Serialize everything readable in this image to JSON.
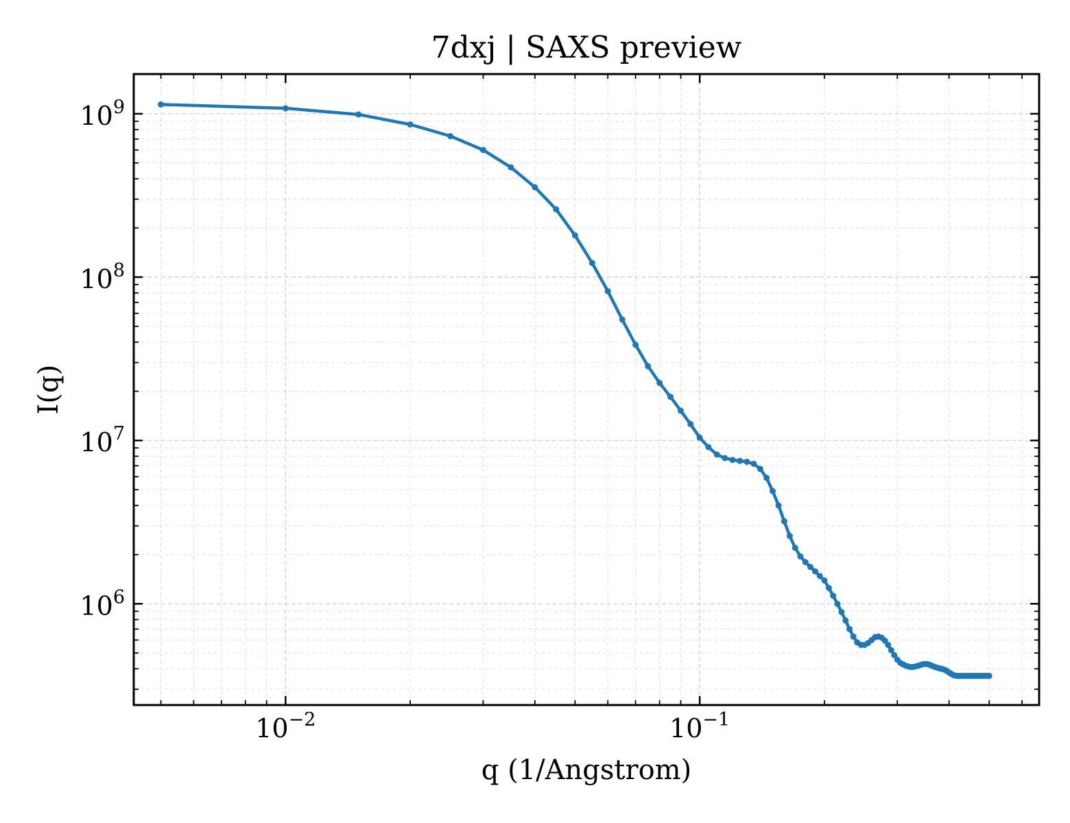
{
  "chart_data": {
    "type": "line",
    "title": "7dxj | SAXS preview",
    "xlabel": "q (1/Angstrom)",
    "ylabel": "I(q)",
    "xscale": "log",
    "yscale": "log",
    "xlim": [
      0.0043,
      0.66
    ],
    "ylim": [
      240000,
      1750000000
    ],
    "grid": "on (major and minor, dashed)",
    "line_color": "#1f77b4",
    "x_ticks": [
      {
        "value": 0.01,
        "base": "10",
        "exp": "−2"
      },
      {
        "value": 0.1,
        "base": "10",
        "exp": "−1"
      }
    ],
    "y_ticks": [
      {
        "value": 1000000,
        "base": "10",
        "exp": "6"
      },
      {
        "value": 10000000,
        "base": "10",
        "exp": "7"
      },
      {
        "value": 100000000,
        "base": "10",
        "exp": "8"
      },
      {
        "value": 1000000000,
        "base": "10",
        "exp": "9"
      }
    ],
    "series": [
      {
        "x": [
          0.005,
          0.01,
          0.015,
          0.02,
          0.025,
          0.03,
          0.035,
          0.04,
          0.045,
          0.05,
          0.055,
          0.06,
          0.065,
          0.07,
          0.075,
          0.08,
          0.085,
          0.09,
          0.095,
          0.1,
          0.105,
          0.11,
          0.115,
          0.12,
          0.125,
          0.13,
          0.135,
          0.14,
          0.145,
          0.15,
          0.155,
          0.16,
          0.165,
          0.17,
          0.175,
          0.18,
          0.185,
          0.19,
          0.195,
          0.2,
          0.205,
          0.21,
          0.215,
          0.22,
          0.225,
          0.23,
          0.235,
          0.24,
          0.245,
          0.25,
          0.255,
          0.26,
          0.265,
          0.27,
          0.275,
          0.28,
          0.285,
          0.29,
          0.295,
          0.3,
          0.305,
          0.31,
          0.315,
          0.32,
          0.325,
          0.33,
          0.335,
          0.34,
          0.345,
          0.35,
          0.355,
          0.36,
          0.365,
          0.37,
          0.375,
          0.38,
          0.385,
          0.39,
          0.395,
          0.4,
          0.405,
          0.41,
          0.415,
          0.42,
          0.425,
          0.43,
          0.435,
          0.44,
          0.445,
          0.45,
          0.455,
          0.46,
          0.465,
          0.47,
          0.475,
          0.48,
          0.485,
          0.49,
          0.495,
          0.5
        ],
        "y": [
          1140000000,
          1080000000,
          990000000,
          860000000,
          730000000,
          600000000,
          470000000,
          355000000,
          260000000,
          180000000,
          122000000,
          82000000,
          55000000,
          38500000,
          28500000,
          22500000,
          18500000,
          15200000,
          12600000,
          10400000,
          9100000,
          8200000,
          7800000,
          7600000,
          7500000,
          7400000,
          7200000,
          6700000,
          5900000,
          4900000,
          4000000,
          3200000,
          2600000,
          2200000,
          1950000,
          1800000,
          1680000,
          1580000,
          1480000,
          1390000,
          1250000,
          1120000,
          1000000,
          890000,
          790000,
          700000,
          630000,
          580000,
          560000,
          560000,
          575000,
          600000,
          625000,
          630000,
          620000,
          595000,
          560000,
          520000,
          485000,
          455000,
          435000,
          425000,
          417000,
          412000,
          410000,
          412000,
          416000,
          421000,
          426000,
          428000,
          427000,
          422000,
          416000,
          410000,
          406000,
          402000,
          399000,
          395000,
          388000,
          380000,
          372000,
          366000,
          363000,
          362000,
          362000,
          362000,
          362000,
          362000,
          362000,
          362000,
          362000,
          362000,
          362000,
          362000,
          362000,
          362000,
          362000,
          362000,
          362000,
          362000
        ]
      }
    ]
  }
}
